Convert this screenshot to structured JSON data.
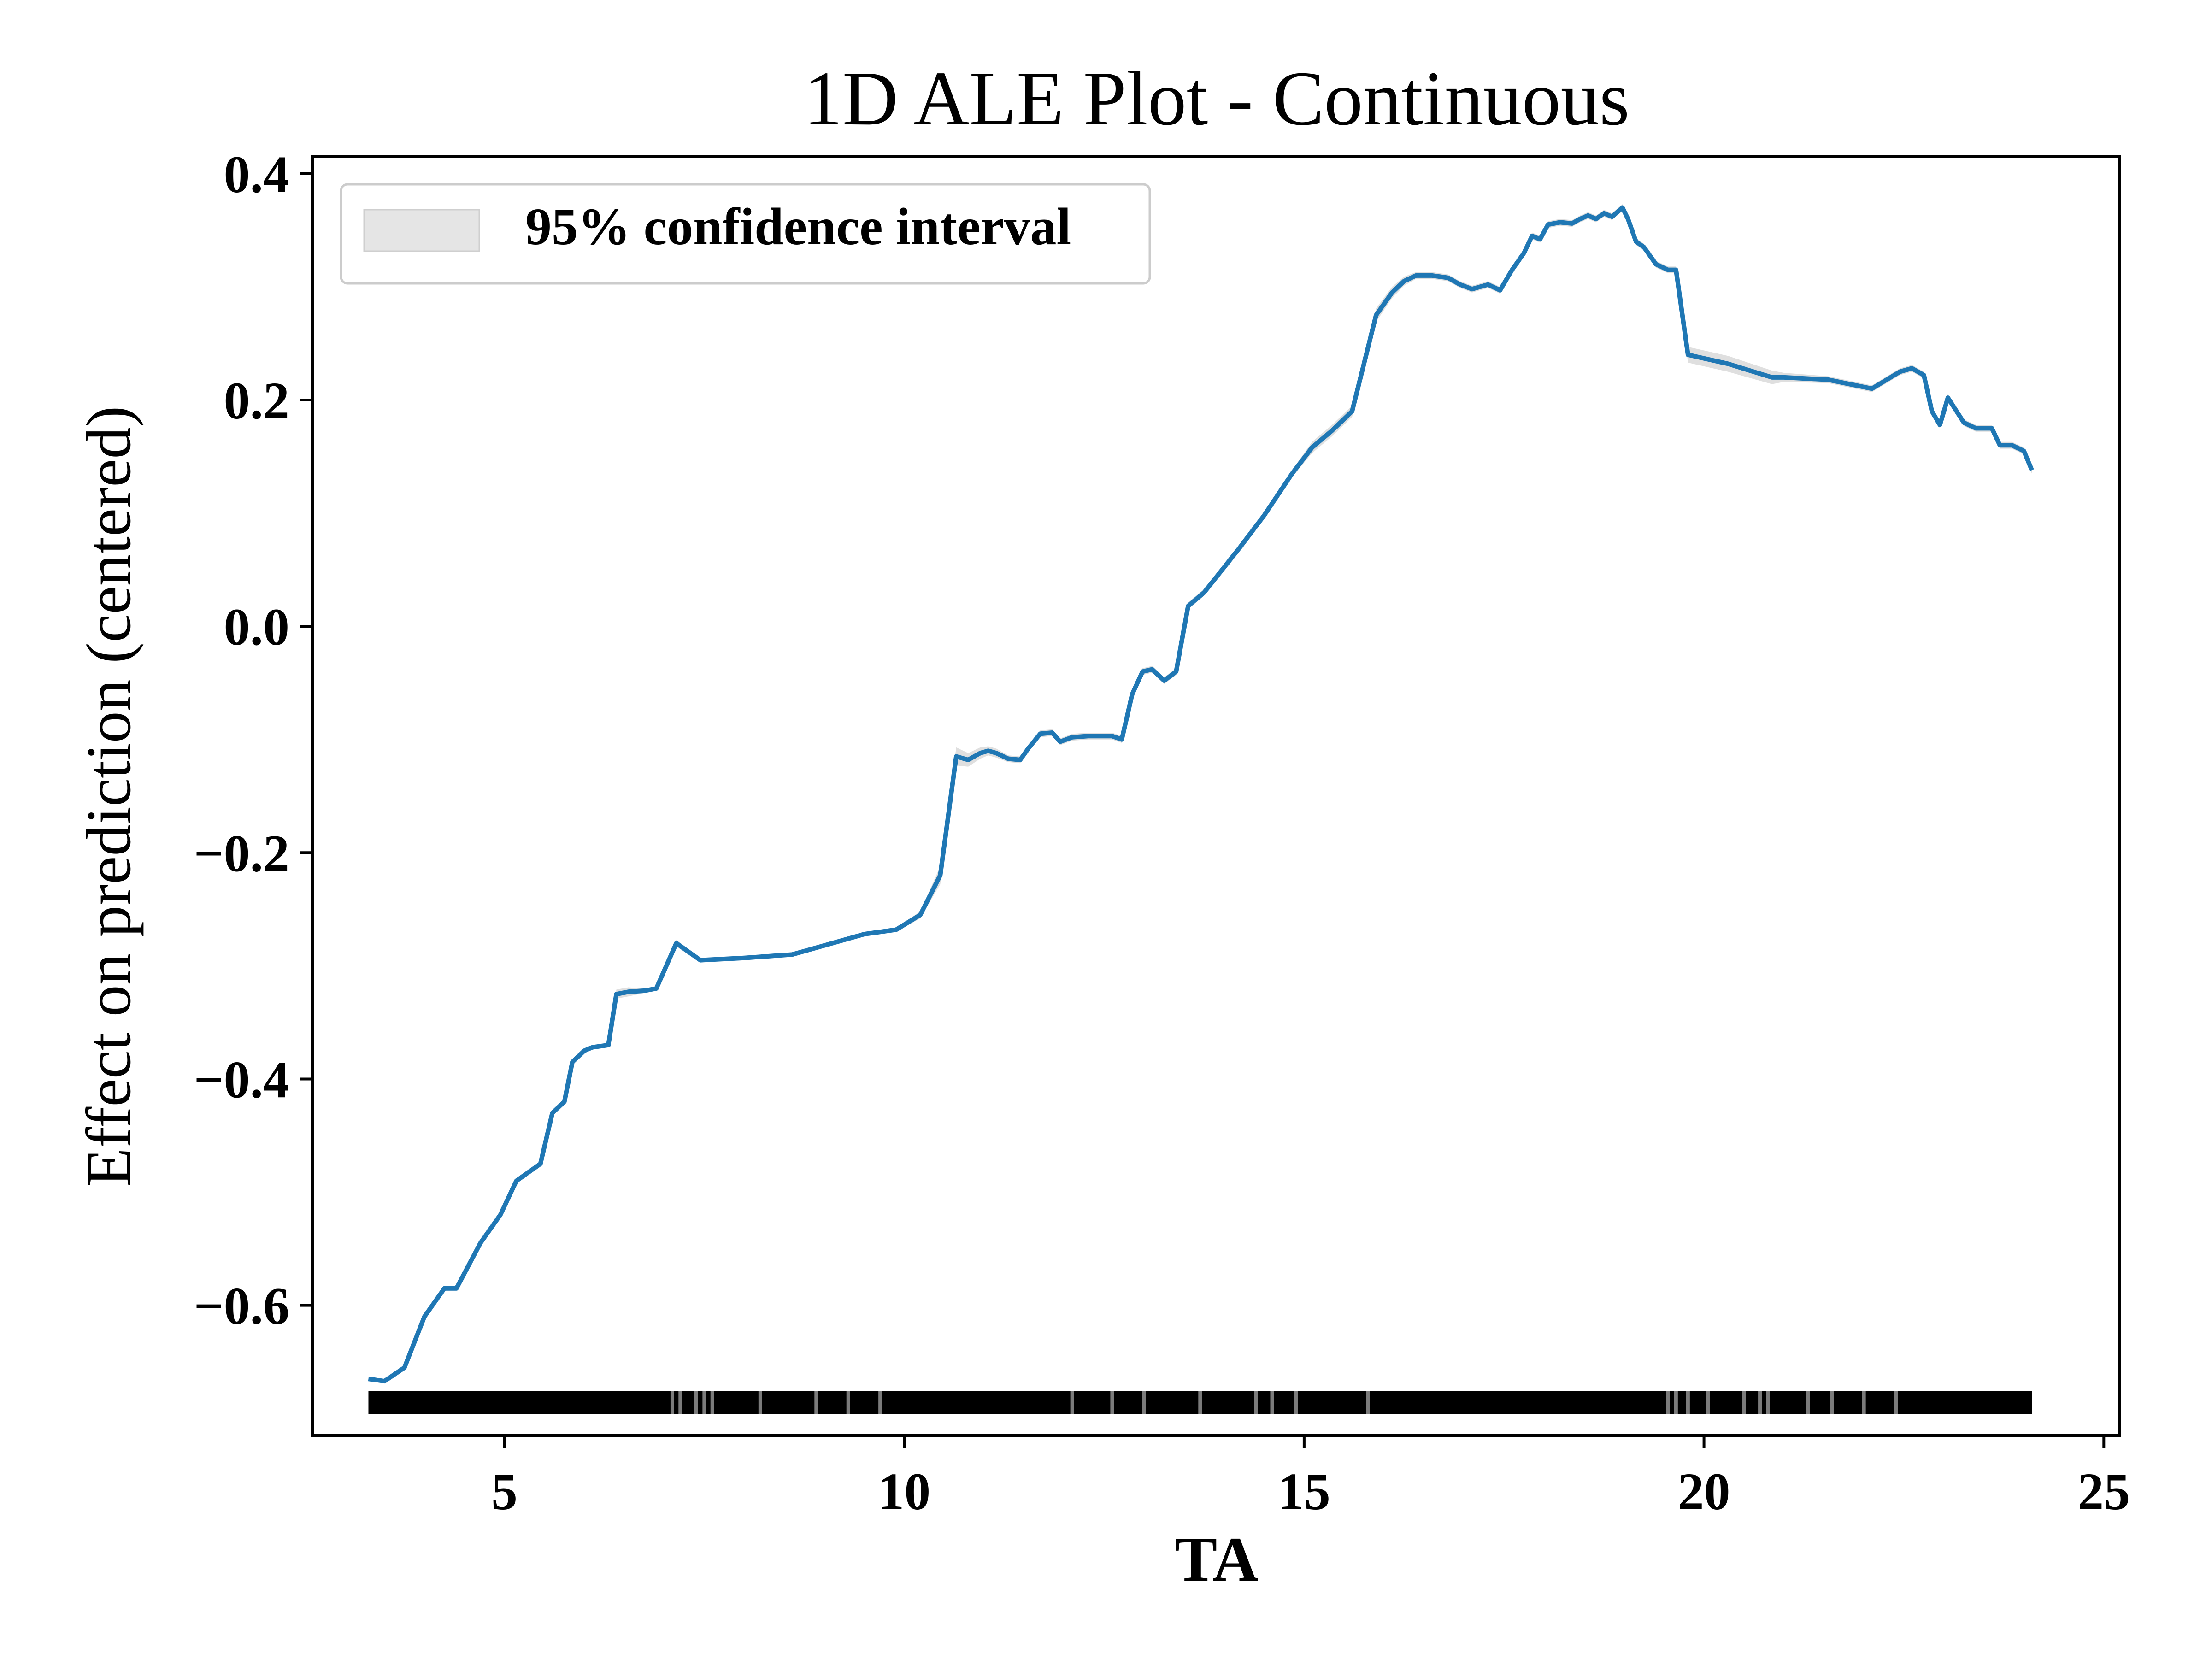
{
  "chart_data": {
    "type": "line",
    "title": "1D ALE Plot - Continuous",
    "xlabel": "TA",
    "ylabel": "Effect on prediction (centered)",
    "xlim": [
      2.6,
      25.2
    ],
    "ylim": [
      -0.715,
      0.415
    ],
    "xticks": [
      5,
      10,
      15,
      20,
      25
    ],
    "xtick_labels": [
      "5",
      "10",
      "15",
      "20",
      "25"
    ],
    "yticks": [
      -0.6,
      -0.4,
      -0.2,
      0.0,
      0.2,
      0.4
    ],
    "ytick_labels": [
      "−0.6",
      "−0.4",
      "−0.2",
      "0.0",
      "0.2",
      "0.4"
    ],
    "grid": false,
    "legend": {
      "position": "top-left",
      "entries": [
        "95% confidence interval"
      ]
    },
    "colors": {
      "line": "#1f77b4",
      "ci_band": "#d9d9d9",
      "rug": "#000000",
      "axes": "#000000"
    },
    "series": [
      {
        "x": [
          3.3,
          3.5,
          3.75,
          4.0,
          4.25,
          4.4,
          4.7,
          4.95,
          5.15,
          5.45,
          5.6,
          5.75,
          5.85,
          6.0,
          6.1,
          6.3,
          6.4,
          6.55,
          6.75,
          6.9,
          7.15,
          7.45,
          8.0,
          8.6,
          9.0,
          9.5,
          9.9,
          10.2,
          10.45,
          10.65,
          10.8,
          10.95,
          11.05,
          11.15,
          11.3,
          11.45,
          11.55,
          11.7,
          11.85,
          11.95,
          12.1,
          12.3,
          12.45,
          12.6,
          12.72,
          12.85,
          12.98,
          13.1,
          13.25,
          13.4,
          13.55,
          13.75,
          14.2,
          14.5,
          14.85,
          15.1,
          15.35,
          15.6,
          15.9,
          16.1,
          16.25,
          16.4,
          16.6,
          16.8,
          16.95,
          17.1,
          17.3,
          17.45,
          17.6,
          17.75,
          17.85,
          17.95,
          18.05,
          18.2,
          18.35,
          18.45,
          18.55,
          18.65,
          18.75,
          18.85,
          18.98,
          19.05,
          19.15,
          19.25,
          19.4,
          19.55,
          19.65,
          19.8,
          20.3,
          20.85,
          21.0,
          21.55,
          22.1,
          22.45,
          22.6,
          22.75,
          22.85,
          22.95,
          23.05,
          23.25,
          23.4,
          23.6,
          23.7,
          23.85,
          24.0,
          24.1
        ],
        "y": [
          -0.665,
          -0.667,
          -0.655,
          -0.61,
          -0.585,
          -0.585,
          -0.545,
          -0.52,
          -0.49,
          -0.475,
          -0.43,
          -0.42,
          -0.385,
          -0.375,
          -0.372,
          -0.37,
          -0.325,
          -0.323,
          -0.322,
          -0.32,
          -0.28,
          -0.295,
          -0.293,
          -0.29,
          -0.282,
          -0.272,
          -0.268,
          -0.255,
          -0.22,
          -0.115,
          -0.118,
          -0.112,
          -0.11,
          -0.112,
          -0.117,
          -0.118,
          -0.108,
          -0.095,
          -0.094,
          -0.102,
          -0.098,
          -0.097,
          -0.097,
          -0.097,
          -0.1,
          -0.06,
          -0.04,
          -0.038,
          -0.048,
          -0.04,
          0.018,
          0.03,
          0.07,
          0.098,
          0.135,
          0.158,
          0.173,
          0.19,
          0.275,
          0.295,
          0.305,
          0.31,
          0.31,
          0.308,
          0.302,
          0.298,
          0.302,
          0.297,
          0.315,
          0.33,
          0.345,
          0.342,
          0.355,
          0.357,
          0.356,
          0.36,
          0.363,
          0.36,
          0.365,
          0.362,
          0.37,
          0.36,
          0.34,
          0.335,
          0.32,
          0.315,
          0.315,
          0.24,
          0.232,
          0.22,
          0.22,
          0.218,
          0.21,
          0.225,
          0.228,
          0.222,
          0.19,
          0.178,
          0.202,
          0.18,
          0.175,
          0.175,
          0.16,
          0.16,
          0.155,
          0.138
        ],
        "ci_halfwidth": [
          0.002,
          0.002,
          0.002,
          0.002,
          0.002,
          0.002,
          0.002,
          0.002,
          0.002,
          0.002,
          0.002,
          0.002,
          0.002,
          0.002,
          0.002,
          0.002,
          0.004,
          0.004,
          0.002,
          0.002,
          0.003,
          0.002,
          0.002,
          0.002,
          0.002,
          0.002,
          0.002,
          0.003,
          0.008,
          0.008,
          0.006,
          0.005,
          0.004,
          0.004,
          0.003,
          0.003,
          0.003,
          0.003,
          0.003,
          0.003,
          0.003,
          0.003,
          0.003,
          0.003,
          0.003,
          0.003,
          0.003,
          0.003,
          0.003,
          0.003,
          0.003,
          0.003,
          0.003,
          0.003,
          0.003,
          0.005,
          0.005,
          0.005,
          0.006,
          0.005,
          0.004,
          0.003,
          0.003,
          0.003,
          0.003,
          0.003,
          0.003,
          0.003,
          0.003,
          0.003,
          0.003,
          0.003,
          0.003,
          0.003,
          0.003,
          0.003,
          0.003,
          0.003,
          0.003,
          0.003,
          0.003,
          0.003,
          0.003,
          0.003,
          0.003,
          0.003,
          0.003,
          0.007,
          0.007,
          0.006,
          0.004,
          0.003,
          0.003,
          0.003,
          0.003,
          0.003,
          0.003,
          0.003,
          0.003,
          0.003,
          0.003,
          0.003,
          0.003,
          0.003,
          0.003,
          0.003
        ]
      }
    ],
    "rug": {
      "x_range": [
        3.3,
        24.1
      ],
      "y": -0.686,
      "gaps": [
        7.1,
        7.2,
        7.4,
        7.5,
        7.6,
        8.2,
        8.9,
        9.3,
        9.7,
        12.1,
        12.6,
        13.0,
        13.7,
        14.4,
        14.6,
        14.9,
        15.8,
        19.55,
        19.65,
        19.8,
        20.05,
        20.5,
        20.7,
        20.8,
        21.3,
        21.6,
        22.0,
        22.4
      ]
    }
  }
}
